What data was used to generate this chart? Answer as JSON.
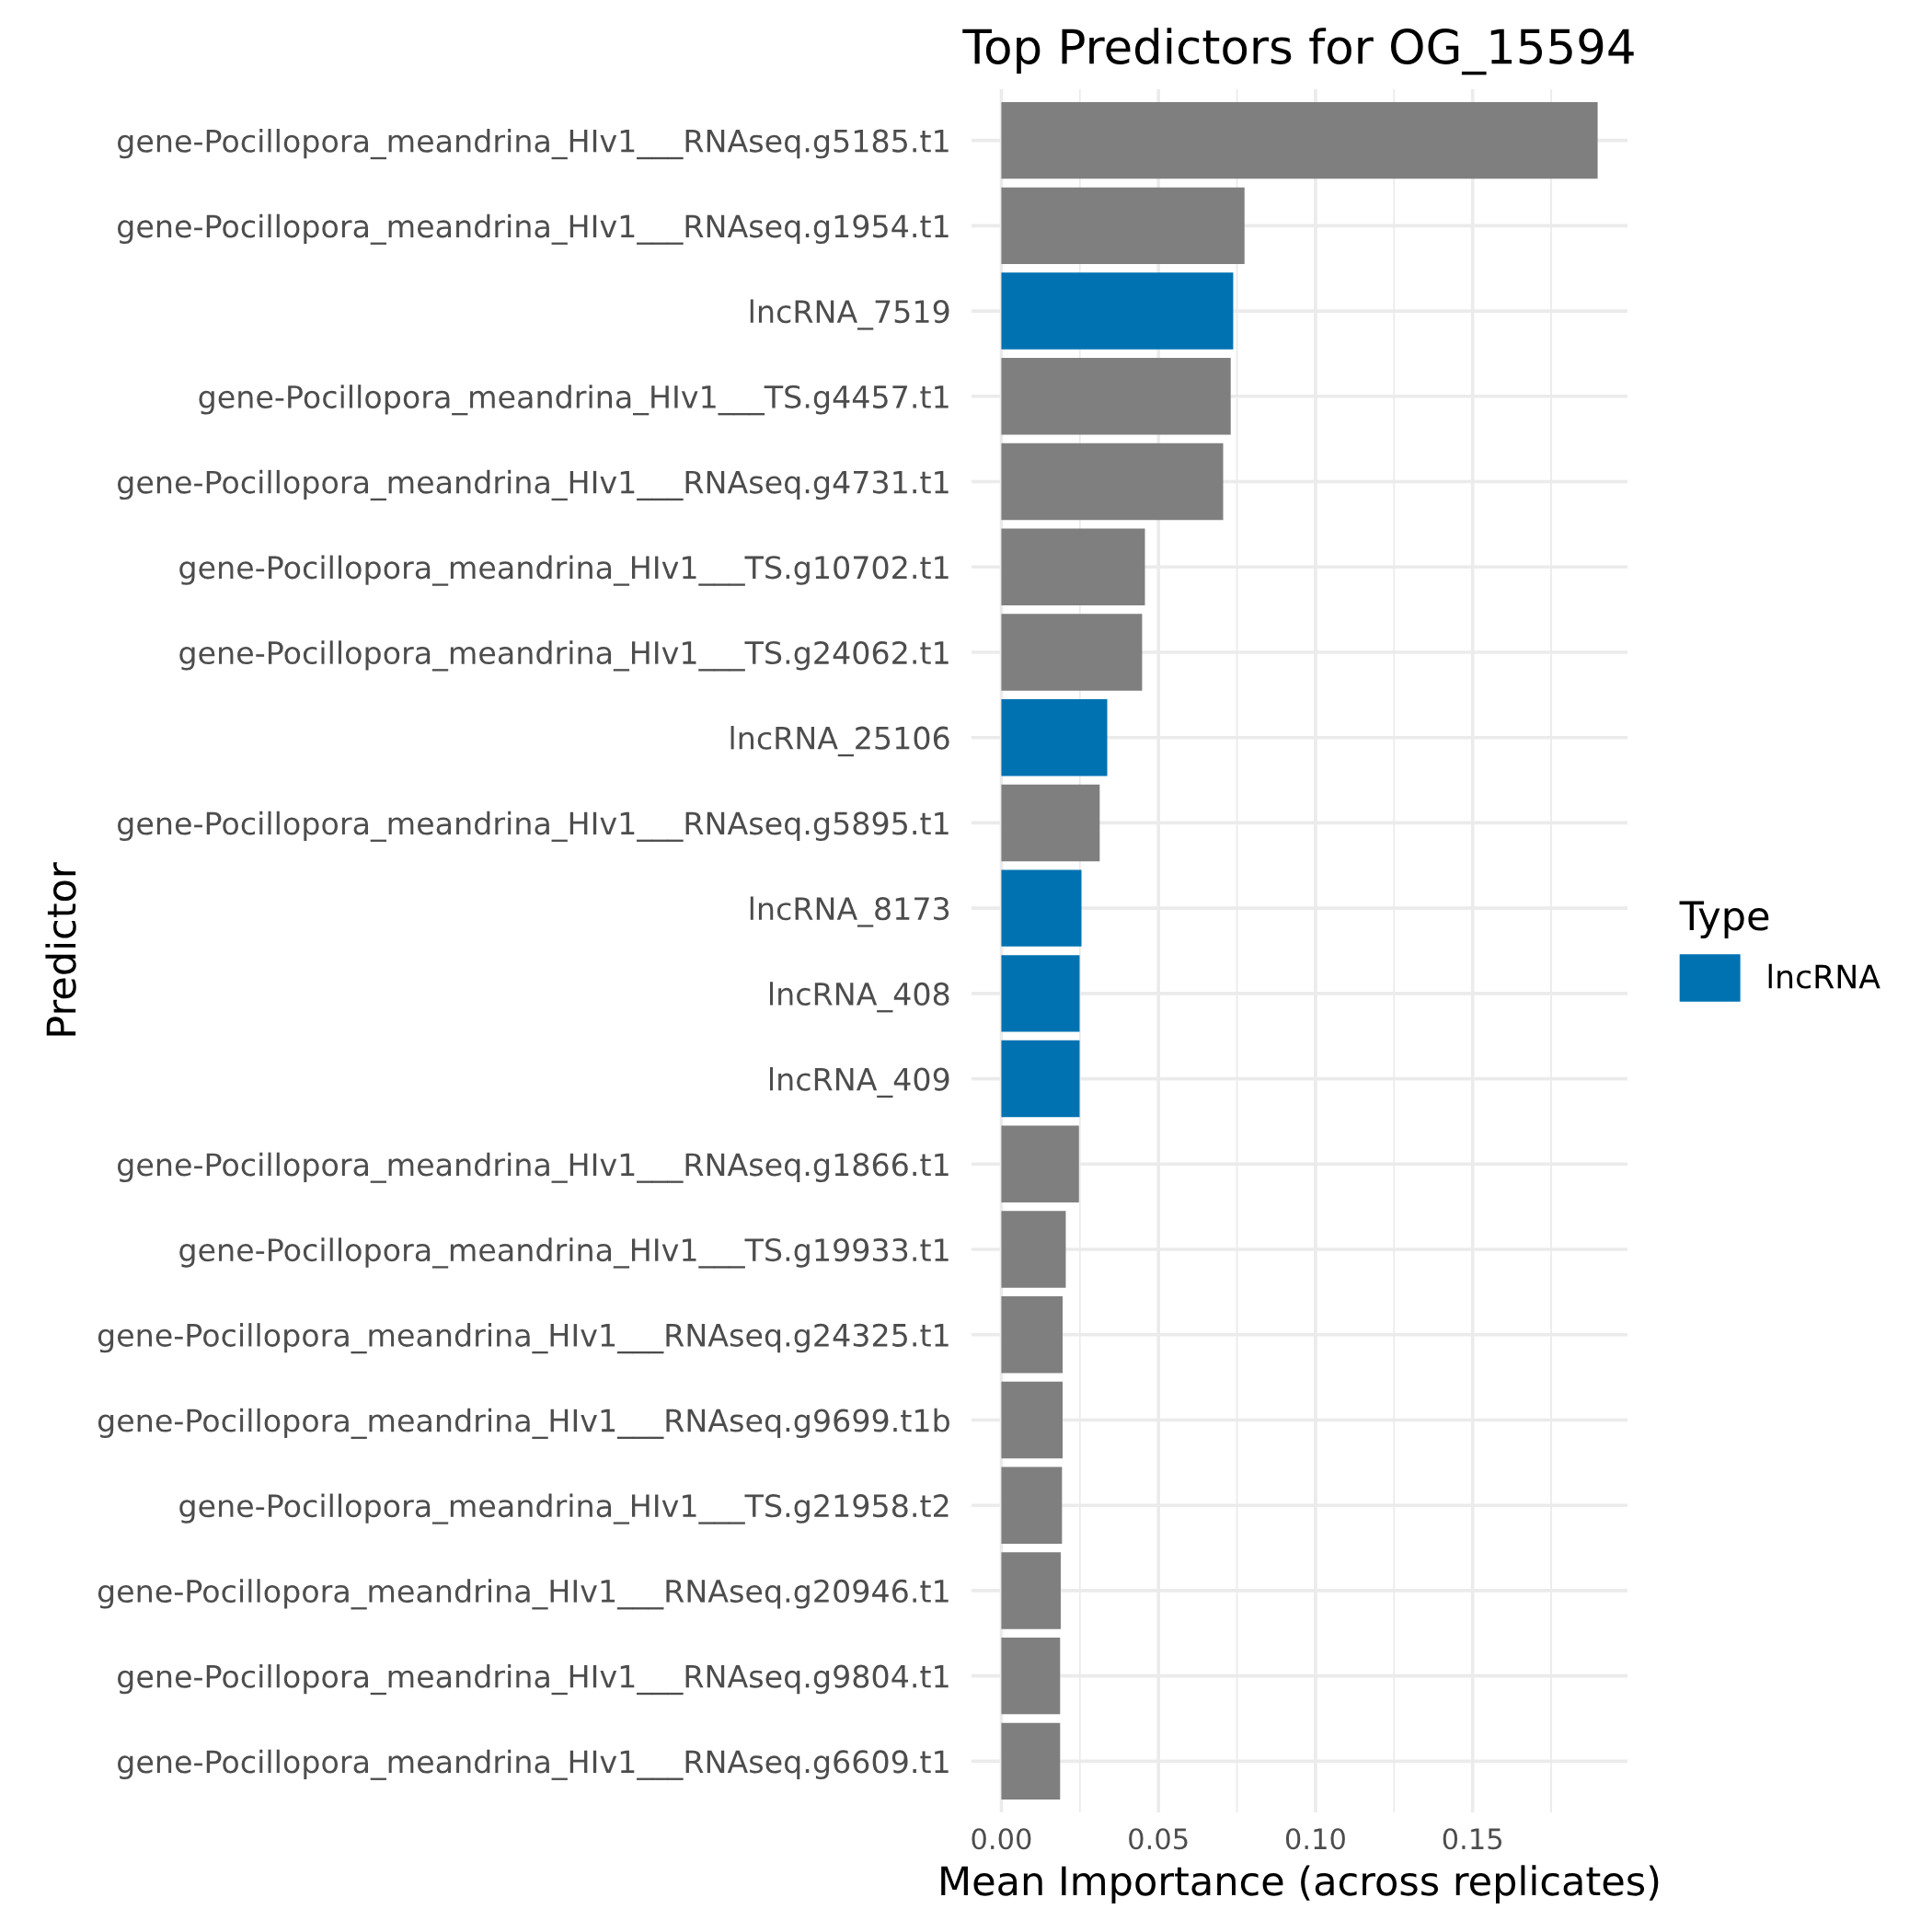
{
  "chart_data": {
    "type": "bar",
    "orientation": "horizontal",
    "title": "Top Predictors for OG_15594",
    "xlabel": "Mean Importance (across replicates)",
    "ylabel": "Predictor",
    "legend_title": "Type",
    "legend": "right",
    "categories": [
      "gene-Pocillopora_meandrina_HIv1___RNAseq.g5185.t1",
      "gene-Pocillopora_meandrina_HIv1___RNAseq.g1954.t1",
      "lncRNA_7519",
      "gene-Pocillopora_meandrina_HIv1___TS.g4457.t1",
      "gene-Pocillopora_meandrina_HIv1___RNAseq.g4731.t1",
      "gene-Pocillopora_meandrina_HIv1___TS.g10702.t1",
      "gene-Pocillopora_meandrina_HIv1___TS.g24062.t1",
      "lncRNA_25106",
      "gene-Pocillopora_meandrina_HIv1___RNAseq.g5895.t1",
      "lncRNA_8173",
      "lncRNA_408",
      "lncRNA_409",
      "gene-Pocillopora_meandrina_HIv1___RNAseq.g1866.t1",
      "gene-Pocillopora_meandrina_HIv1___TS.g19933.t1",
      "gene-Pocillopora_meandrina_HIv1___RNAseq.g24325.t1",
      "gene-Pocillopora_meandrina_HIv1___RNAseq.g9699.t1b",
      "gene-Pocillopora_meandrina_HIv1___TS.g21958.t2",
      "gene-Pocillopora_meandrina_HIv1___RNAseq.g20946.t1",
      "gene-Pocillopora_meandrina_HIv1___RNAseq.g9804.t1",
      "gene-Pocillopora_meandrina_HIv1___RNAseq.g6609.t1"
    ],
    "series": [
      {
        "name": "lncRNA",
        "color": "#0072b2",
        "values": [
          null,
          null,
          0.0738,
          null,
          null,
          null,
          null,
          0.0337,
          null,
          0.0255,
          0.0249,
          0.0249,
          null,
          null,
          null,
          null,
          null,
          null,
          null,
          null
        ]
      },
      {
        "color": "#7f7f7f",
        "values": [
          0.1898,
          0.0774,
          null,
          0.073,
          0.0706,
          0.0457,
          0.0448,
          null,
          0.0313,
          null,
          null,
          null,
          0.0247,
          0.0205,
          0.0195,
          0.0195,
          0.0193,
          0.0189,
          0.0187,
          0.0187
        ]
      }
    ],
    "xlim": [
      -0.0095,
      0.1993
    ],
    "xticks": [
      {
        "value": 0,
        "label": "0.00"
      },
      {
        "value": 0.05,
        "label": "0.05"
      },
      {
        "value": 0.1,
        "label": "0.10"
      },
      {
        "value": 0.15,
        "label": "0.15"
      }
    ],
    "grid": true
  }
}
